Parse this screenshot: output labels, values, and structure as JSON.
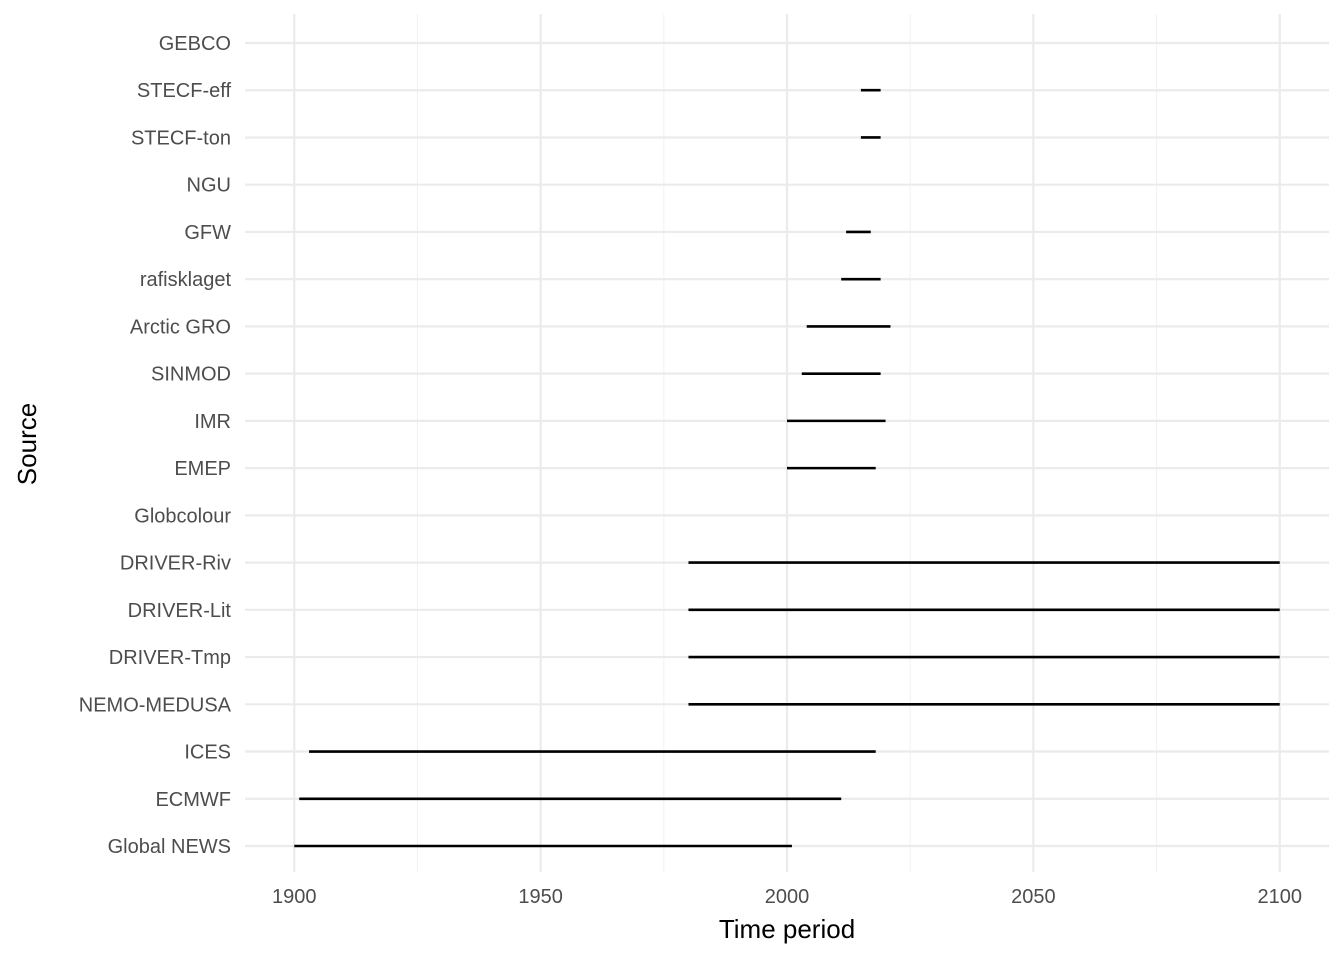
{
  "chart_data": {
    "type": "range",
    "title": "",
    "xlabel": "Time period",
    "ylabel": "Source",
    "xlim": [
      1890,
      2110
    ],
    "x_ticks": [
      1900,
      1950,
      2000,
      2050,
      2100
    ],
    "x_minor_ticks": [
      1925,
      1975,
      2025,
      2075
    ],
    "grid": true,
    "categories": [
      "GEBCO",
      "STECF-eff",
      "STECF-ton",
      "NGU",
      "GFW",
      "rafisklaget",
      "Arctic GRO",
      "SINMOD",
      "IMR",
      "EMEP",
      "Globcolour",
      "DRIVER-Riv",
      "DRIVER-Lit",
      "DRIVER-Tmp",
      "NEMO-MEDUSA",
      "ICES",
      "ECMWF",
      "Global NEWS"
    ],
    "ranges": [
      {
        "source": "GEBCO",
        "start": null,
        "end": null
      },
      {
        "source": "STECF-eff",
        "start": 2015,
        "end": 2019
      },
      {
        "source": "STECF-ton",
        "start": 2015,
        "end": 2019
      },
      {
        "source": "NGU",
        "start": null,
        "end": null
      },
      {
        "source": "GFW",
        "start": 2012,
        "end": 2017
      },
      {
        "source": "rafisklaget",
        "start": 2011,
        "end": 2019
      },
      {
        "source": "Arctic GRO",
        "start": 2004,
        "end": 2021
      },
      {
        "source": "SINMOD",
        "start": 2003,
        "end": 2019
      },
      {
        "source": "IMR",
        "start": 2000,
        "end": 2020
      },
      {
        "source": "EMEP",
        "start": 2000,
        "end": 2018
      },
      {
        "source": "Globcolour",
        "start": null,
        "end": null
      },
      {
        "source": "DRIVER-Riv",
        "start": 1980,
        "end": 2100
      },
      {
        "source": "DRIVER-Lit",
        "start": 1980,
        "end": 2100
      },
      {
        "source": "DRIVER-Tmp",
        "start": 1980,
        "end": 2100
      },
      {
        "source": "NEMO-MEDUSA",
        "start": 1980,
        "end": 2100
      },
      {
        "source": "ICES",
        "start": 1903,
        "end": 2018
      },
      {
        "source": "ECMWF",
        "start": 1901,
        "end": 2011
      },
      {
        "source": "Global NEWS",
        "start": 1900,
        "end": 2001
      }
    ]
  }
}
